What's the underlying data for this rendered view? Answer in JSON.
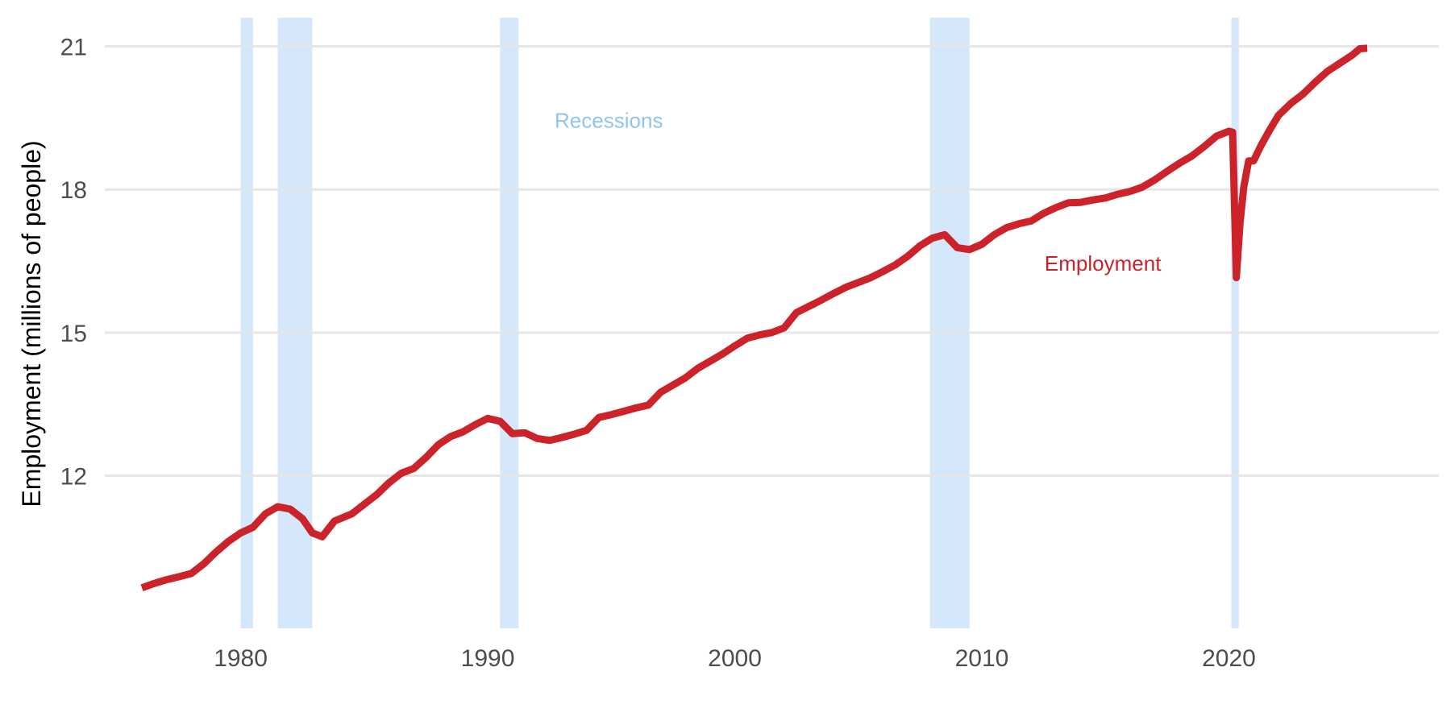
{
  "chart_data": {
    "type": "line",
    "title": "",
    "xlabel": "",
    "ylabel": "Employment (millions of people)",
    "xlim": [
      1974.5,
      2028.5
    ],
    "ylim": [
      8.8,
      21.6
    ],
    "x_ticks": [
      1980,
      1990,
      2000,
      2010,
      2020
    ],
    "x_tick_labels": [
      "1980",
      "1990",
      "2000",
      "2010",
      "2020"
    ],
    "y_ticks": [
      12,
      15,
      18,
      21
    ],
    "y_tick_labels": [
      "12",
      "15",
      "18",
      "21"
    ],
    "grid": "horizontal",
    "recessions": [
      [
        1980.0,
        1980.5
      ],
      [
        1981.5,
        1982.9
      ],
      [
        1990.5,
        1991.25
      ],
      [
        2007.9,
        2009.5
      ],
      [
        2020.1,
        2020.4
      ]
    ],
    "series": [
      {
        "name": "Employment",
        "color": "#cc2229",
        "x": [
          1976.0,
          1976.5,
          1977.0,
          1977.5,
          1978.0,
          1978.5,
          1979.0,
          1979.5,
          1980.0,
          1980.5,
          1981.0,
          1981.5,
          1982.0,
          1982.5,
          1982.9,
          1983.3,
          1983.8,
          1984.5,
          1985.0,
          1985.5,
          1986.0,
          1986.5,
          1987.0,
          1987.5,
          1988.0,
          1988.5,
          1989.0,
          1989.5,
          1990.0,
          1990.5,
          1991.0,
          1991.5,
          1992.0,
          1992.5,
          1993.0,
          1993.5,
          1994.0,
          1994.5,
          1995.0,
          1995.5,
          1996.0,
          1996.5,
          1997.0,
          1997.5,
          1998.0,
          1998.5,
          1999.0,
          1999.5,
          2000.0,
          2000.5,
          2001.0,
          2001.5,
          2002.0,
          2002.5,
          2003.0,
          2003.5,
          2004.0,
          2004.5,
          2005.0,
          2005.5,
          2006.0,
          2006.5,
          2007.0,
          2007.5,
          2008.0,
          2008.5,
          2009.0,
          2009.5,
          2010.0,
          2010.5,
          2011.0,
          2011.5,
          2012.0,
          2012.5,
          2013.0,
          2013.5,
          2014.0,
          2014.5,
          2015.0,
          2015.5,
          2016.0,
          2016.5,
          2017.0,
          2017.5,
          2018.0,
          2018.5,
          2019.0,
          2019.5,
          2020.0,
          2020.15,
          2020.3,
          2020.45,
          2020.6,
          2020.8,
          2021.0,
          2021.3,
          2021.6,
          2022.0,
          2022.5,
          2023.0,
          2023.5,
          2024.0,
          2024.5,
          2025.0,
          2025.3,
          2025.6
        ],
        "values": [
          9.65,
          9.74,
          9.82,
          9.88,
          9.95,
          10.15,
          10.4,
          10.62,
          10.8,
          10.92,
          11.2,
          11.35,
          11.3,
          11.1,
          10.8,
          10.72,
          11.05,
          11.2,
          11.4,
          11.6,
          11.85,
          12.05,
          12.15,
          12.38,
          12.65,
          12.82,
          12.92,
          13.07,
          13.2,
          13.14,
          12.88,
          12.9,
          12.78,
          12.74,
          12.8,
          12.87,
          12.95,
          13.22,
          13.28,
          13.35,
          13.42,
          13.48,
          13.75,
          13.9,
          14.05,
          14.25,
          14.4,
          14.55,
          14.72,
          14.88,
          14.95,
          15.0,
          15.1,
          15.42,
          15.55,
          15.68,
          15.82,
          15.95,
          16.05,
          16.15,
          16.28,
          16.42,
          16.6,
          16.82,
          16.98,
          17.05,
          16.78,
          16.74,
          16.85,
          17.05,
          17.2,
          17.28,
          17.34,
          17.5,
          17.62,
          17.72,
          17.73,
          17.78,
          17.82,
          17.9,
          17.96,
          18.05,
          18.2,
          18.38,
          18.55,
          18.7,
          18.9,
          19.12,
          19.22,
          19.2,
          16.15,
          17.3,
          18.05,
          18.6,
          18.6,
          18.92,
          19.2,
          19.55,
          19.8,
          20.0,
          20.25,
          20.48,
          20.65,
          20.82,
          20.95,
          20.96
        ]
      }
    ],
    "annotations": [
      {
        "text": "Recessions",
        "x": 1994.9,
        "y": 19.45,
        "color": "#8ec5f2"
      },
      {
        "text": "Employment",
        "x": 2014.9,
        "y": 16.45,
        "color": "#cc2229"
      }
    ],
    "colors": {
      "line": "#cc2229",
      "recession_band": "#d5e8fb",
      "grid": "#e6e6e6",
      "tick_text": "#4d4d4d",
      "recession_label": "#8ec5f2"
    }
  }
}
